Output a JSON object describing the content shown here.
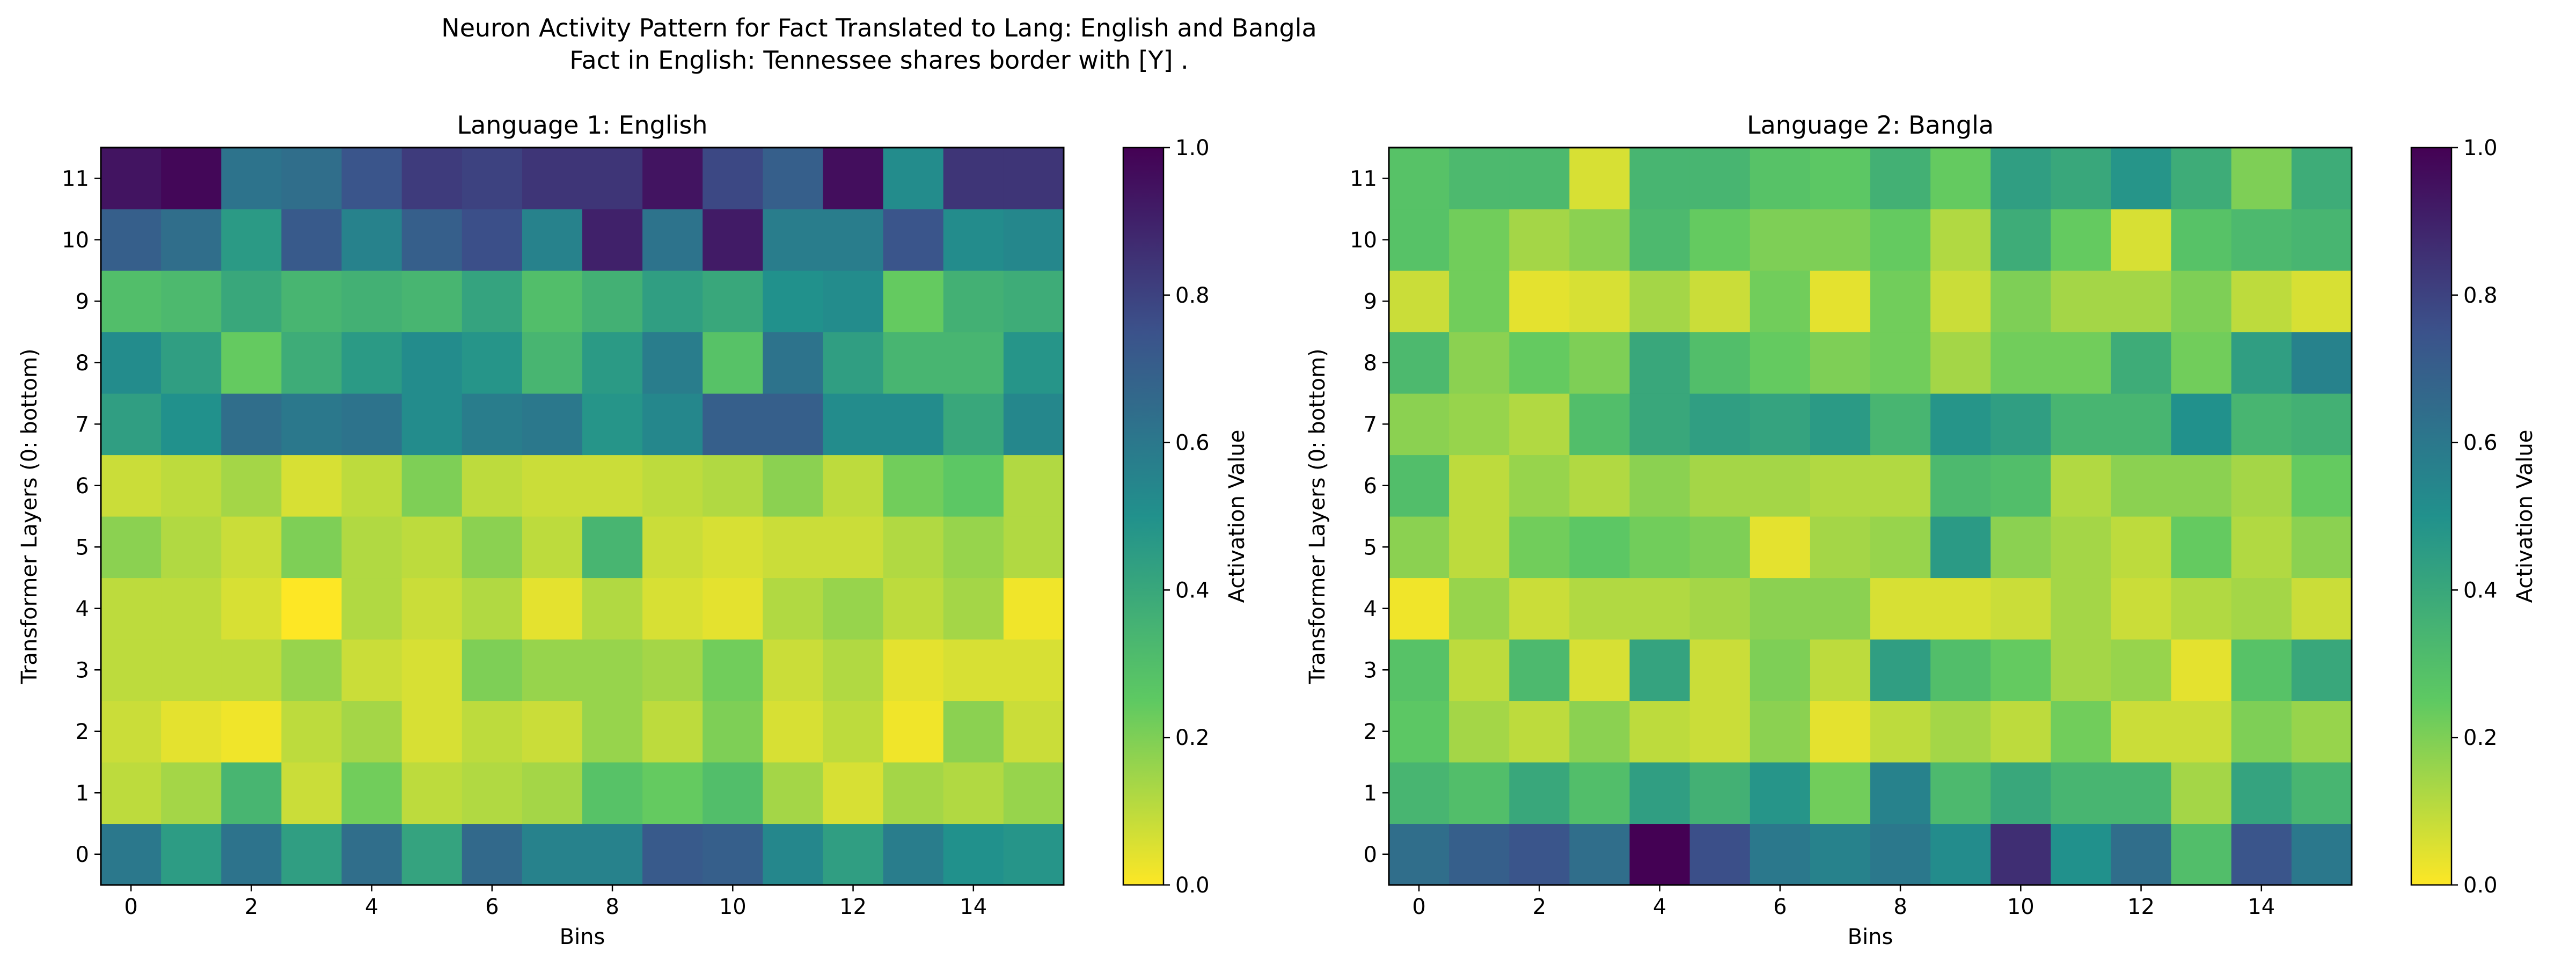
{
  "figure": {
    "title_line1": "Neuron Activity Pattern for Fact Translated to Lang: English and Bangla",
    "title_line2": "Fact in English: Tennessee shares border with [Y] ."
  },
  "colormap": {
    "name": "viridis_r",
    "stops": [
      "#fde725",
      "#5ec962",
      "#21918c",
      "#3b528b",
      "#440154"
    ]
  },
  "chart_data": [
    {
      "type": "heatmap",
      "title": "Language 1: English",
      "xlabel": "Bins",
      "ylabel": "Transformer Layers (0: bottom)",
      "x_ticks": [
        0,
        2,
        4,
        6,
        8,
        10,
        12,
        14
      ],
      "y_ticks": [
        0,
        1,
        2,
        3,
        4,
        5,
        6,
        7,
        8,
        9,
        10,
        11
      ],
      "x_range": [
        0,
        15
      ],
      "y_range": [
        0,
        11
      ],
      "colorbar": {
        "label": "Activation Value",
        "ticks": [
          "0.0",
          "0.2",
          "0.4",
          "0.6",
          "0.8",
          "1.0"
        ],
        "range": [
          0,
          1
        ]
      },
      "rows": [
        [
          0.6,
          0.45,
          0.62,
          0.44,
          0.64,
          0.42,
          0.66,
          0.56,
          0.56,
          0.72,
          0.7,
          0.54,
          0.44,
          0.58,
          0.5,
          0.48
        ],
        [
          0.1,
          0.14,
          0.34,
          0.08,
          0.22,
          0.1,
          0.12,
          0.14,
          0.28,
          0.24,
          0.3,
          0.14,
          0.06,
          0.14,
          0.12,
          0.16
        ],
        [
          0.08,
          0.04,
          0.02,
          0.1,
          0.14,
          0.06,
          0.1,
          0.08,
          0.16,
          0.1,
          0.2,
          0.06,
          0.1,
          0.02,
          0.18,
          0.08
        ],
        [
          0.1,
          0.1,
          0.1,
          0.16,
          0.08,
          0.06,
          0.2,
          0.16,
          0.16,
          0.14,
          0.22,
          0.08,
          0.12,
          0.04,
          0.06,
          0.06
        ],
        [
          0.1,
          0.1,
          0.06,
          0.0,
          0.12,
          0.08,
          0.12,
          0.04,
          0.12,
          0.06,
          0.04,
          0.12,
          0.16,
          0.1,
          0.14,
          0.02
        ],
        [
          0.18,
          0.12,
          0.08,
          0.2,
          0.12,
          0.1,
          0.18,
          0.1,
          0.34,
          0.08,
          0.06,
          0.08,
          0.08,
          0.12,
          0.16,
          0.12
        ],
        [
          0.08,
          0.1,
          0.14,
          0.06,
          0.1,
          0.2,
          0.1,
          0.08,
          0.08,
          0.1,
          0.12,
          0.18,
          0.1,
          0.22,
          0.26,
          0.12
        ],
        [
          0.44,
          0.5,
          0.64,
          0.6,
          0.62,
          0.52,
          0.58,
          0.6,
          0.48,
          0.54,
          0.7,
          0.7,
          0.52,
          0.52,
          0.4,
          0.54
        ],
        [
          0.52,
          0.44,
          0.24,
          0.38,
          0.46,
          0.52,
          0.48,
          0.34,
          0.46,
          0.58,
          0.28,
          0.62,
          0.44,
          0.34,
          0.34,
          0.48
        ],
        [
          0.3,
          0.32,
          0.4,
          0.34,
          0.36,
          0.34,
          0.42,
          0.3,
          0.36,
          0.44,
          0.4,
          0.5,
          0.52,
          0.24,
          0.36,
          0.38
        ],
        [
          0.7,
          0.64,
          0.46,
          0.72,
          0.56,
          0.7,
          0.76,
          0.56,
          0.9,
          0.62,
          0.92,
          0.58,
          0.58,
          0.74,
          0.52,
          0.54
        ],
        [
          0.94,
          0.98,
          0.62,
          0.64,
          0.74,
          0.82,
          0.8,
          0.84,
          0.84,
          0.94,
          0.78,
          0.7,
          0.96,
          0.52,
          0.84,
          0.84
        ]
      ]
    },
    {
      "type": "heatmap",
      "title": "Language 2: Bangla",
      "xlabel": "Bins",
      "ylabel": "Transformer Layers (0: bottom)",
      "x_ticks": [
        0,
        2,
        4,
        6,
        8,
        10,
        12,
        14
      ],
      "y_ticks": [
        0,
        1,
        2,
        3,
        4,
        5,
        6,
        7,
        8,
        9,
        10,
        11
      ],
      "x_range": [
        0,
        15
      ],
      "y_range": [
        0,
        11
      ],
      "colorbar": {
        "label": "Activation Value",
        "ticks": [
          "0.0",
          "0.2",
          "0.4",
          "0.6",
          "0.8",
          "1.0"
        ],
        "range": [
          0,
          1
        ]
      },
      "rows": [
        [
          0.64,
          0.7,
          0.74,
          0.64,
          1.0,
          0.76,
          0.6,
          0.56,
          0.6,
          0.52,
          0.86,
          0.5,
          0.64,
          0.3,
          0.74,
          0.6
        ],
        [
          0.34,
          0.3,
          0.4,
          0.3,
          0.44,
          0.36,
          0.48,
          0.22,
          0.56,
          0.32,
          0.4,
          0.34,
          0.34,
          0.14,
          0.42,
          0.34
        ],
        [
          0.26,
          0.14,
          0.1,
          0.18,
          0.1,
          0.08,
          0.18,
          0.04,
          0.1,
          0.14,
          0.1,
          0.22,
          0.08,
          0.08,
          0.2,
          0.16
        ],
        [
          0.28,
          0.1,
          0.32,
          0.06,
          0.42,
          0.08,
          0.2,
          0.1,
          0.44,
          0.3,
          0.24,
          0.14,
          0.16,
          0.04,
          0.28,
          0.4
        ],
        [
          0.02,
          0.16,
          0.08,
          0.12,
          0.12,
          0.14,
          0.18,
          0.18,
          0.06,
          0.06,
          0.08,
          0.14,
          0.08,
          0.12,
          0.14,
          0.08
        ],
        [
          0.18,
          0.1,
          0.22,
          0.26,
          0.22,
          0.2,
          0.04,
          0.14,
          0.16,
          0.46,
          0.18,
          0.14,
          0.1,
          0.24,
          0.12,
          0.18
        ],
        [
          0.3,
          0.1,
          0.16,
          0.12,
          0.18,
          0.14,
          0.14,
          0.12,
          0.12,
          0.32,
          0.3,
          0.12,
          0.18,
          0.18,
          0.14,
          0.24
        ],
        [
          0.18,
          0.16,
          0.12,
          0.3,
          0.4,
          0.44,
          0.42,
          0.46,
          0.34,
          0.48,
          0.44,
          0.34,
          0.34,
          0.5,
          0.34,
          0.36
        ],
        [
          0.32,
          0.18,
          0.24,
          0.2,
          0.4,
          0.3,
          0.24,
          0.2,
          0.22,
          0.14,
          0.22,
          0.22,
          0.38,
          0.22,
          0.44,
          0.56
        ],
        [
          0.08,
          0.22,
          0.04,
          0.06,
          0.14,
          0.08,
          0.22,
          0.04,
          0.22,
          0.08,
          0.2,
          0.14,
          0.14,
          0.2,
          0.1,
          0.06
        ],
        [
          0.28,
          0.22,
          0.14,
          0.18,
          0.32,
          0.24,
          0.2,
          0.2,
          0.24,
          0.12,
          0.38,
          0.24,
          0.06,
          0.28,
          0.32,
          0.34
        ],
        [
          0.28,
          0.32,
          0.32,
          0.06,
          0.34,
          0.34,
          0.28,
          0.26,
          0.36,
          0.24,
          0.44,
          0.4,
          0.48,
          0.38,
          0.2,
          0.38
        ]
      ]
    }
  ]
}
